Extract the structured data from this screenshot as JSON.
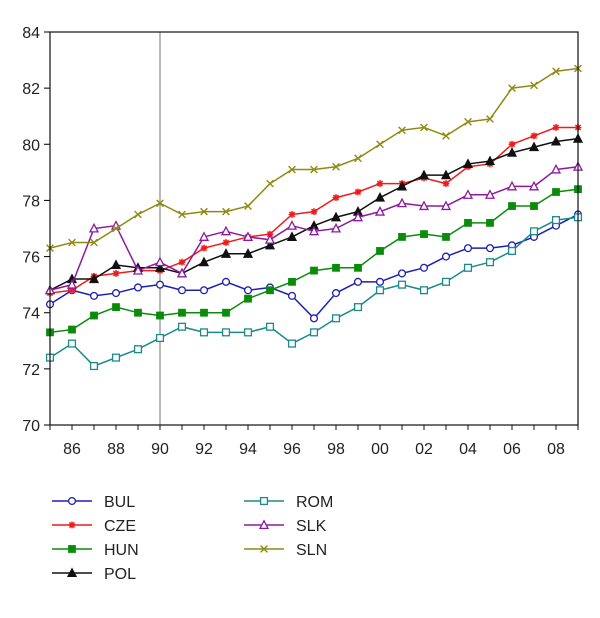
{
  "chart_data": {
    "type": "line",
    "title": "",
    "xlabel": "",
    "ylabel": "",
    "x": [
      1985,
      1986,
      1987,
      1988,
      1989,
      1990,
      1991,
      1992,
      1993,
      1994,
      1995,
      1996,
      1997,
      1998,
      1999,
      2000,
      2001,
      2002,
      2003,
      2004,
      2005,
      2006,
      2007,
      2008,
      2009
    ],
    "xlim": [
      1985,
      2009
    ],
    "ylim": [
      70,
      84
    ],
    "x_ticks": [
      1986,
      1988,
      1990,
      1992,
      1994,
      1996,
      1998,
      2000,
      2002,
      2004,
      2006,
      2008
    ],
    "x_tick_labels": [
      "86",
      "88",
      "90",
      "92",
      "94",
      "96",
      "98",
      "00",
      "02",
      "04",
      "06",
      "08"
    ],
    "y_ticks": [
      70,
      72,
      74,
      76,
      78,
      80,
      82,
      84
    ],
    "y_tick_labels": [
      "70",
      "72",
      "74",
      "76",
      "78",
      "80",
      "82",
      "84"
    ],
    "grid": false,
    "reference_line_x": 1990,
    "legend_position": "bottom",
    "series": [
      {
        "name": "BUL",
        "color": "#1f1fb4",
        "marker": "circle-open",
        "values": [
          74.3,
          74.8,
          74.6,
          74.7,
          74.9,
          75.0,
          74.8,
          74.8,
          75.1,
          74.8,
          74.9,
          74.6,
          73.8,
          74.7,
          75.1,
          75.1,
          75.4,
          75.6,
          76.0,
          76.3,
          76.3,
          76.4,
          76.7,
          77.1,
          77.5
        ]
      },
      {
        "name": "CZE",
        "color": "#ee1c1c",
        "marker": "asterisk",
        "values": [
          74.7,
          74.8,
          75.3,
          75.4,
          75.5,
          75.5,
          75.8,
          76.3,
          76.5,
          76.7,
          76.8,
          77.5,
          77.6,
          78.1,
          78.3,
          78.6,
          78.6,
          78.8,
          78.6,
          79.2,
          79.3,
          80.0,
          80.3,
          80.6,
          80.6
        ]
      },
      {
        "name": "HUN",
        "color": "#0a8c0a",
        "marker": "square-filled",
        "values": [
          73.3,
          73.4,
          73.9,
          74.2,
          74.0,
          73.9,
          74.0,
          74.0,
          74.0,
          74.5,
          74.8,
          75.1,
          75.5,
          75.6,
          75.6,
          76.2,
          76.7,
          76.8,
          76.7,
          77.2,
          77.2,
          77.8,
          77.8,
          78.3,
          78.4
        ]
      },
      {
        "name": "POL",
        "color": "#111111",
        "marker": "triangle-filled",
        "values": [
          74.8,
          75.2,
          75.2,
          75.7,
          75.6,
          75.6,
          75.4,
          75.8,
          76.1,
          76.1,
          76.4,
          76.7,
          77.1,
          77.4,
          77.6,
          78.1,
          78.5,
          78.9,
          78.9,
          79.3,
          79.4,
          79.7,
          79.9,
          80.1,
          80.2
        ]
      },
      {
        "name": "ROM",
        "color": "#1c8a8a",
        "marker": "square-open",
        "values": [
          72.4,
          72.9,
          72.1,
          72.4,
          72.7,
          73.1,
          73.5,
          73.3,
          73.3,
          73.3,
          73.5,
          72.9,
          73.3,
          73.8,
          74.2,
          74.8,
          75.0,
          74.8,
          75.1,
          75.6,
          75.8,
          76.2,
          76.9,
          77.3,
          77.4
        ]
      },
      {
        "name": "SLK",
        "color": "#8c1aa0",
        "marker": "triangle-open",
        "values": [
          74.8,
          75.0,
          77.0,
          77.1,
          75.5,
          75.8,
          75.4,
          76.7,
          76.9,
          76.7,
          76.6,
          77.1,
          76.9,
          77.0,
          77.4,
          77.6,
          77.9,
          77.8,
          77.8,
          78.2,
          78.2,
          78.5,
          78.5,
          79.1,
          79.2
        ]
      },
      {
        "name": "SLN",
        "color": "#8f8a10",
        "marker": "x",
        "values": [
          76.3,
          76.5,
          76.5,
          77.0,
          77.5,
          77.9,
          77.5,
          77.6,
          77.6,
          77.8,
          78.6,
          79.1,
          79.1,
          79.2,
          79.5,
          80.0,
          80.5,
          80.6,
          80.3,
          80.8,
          80.9,
          82.0,
          82.1,
          82.6,
          82.7
        ]
      }
    ]
  }
}
